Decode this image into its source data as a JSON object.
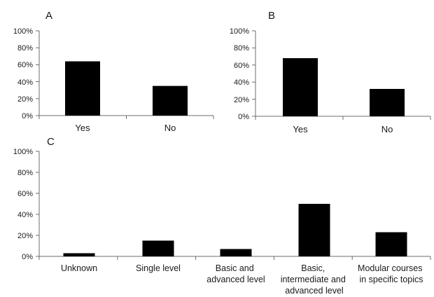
{
  "chart_data": [
    {
      "panel": "A",
      "type": "bar",
      "categories": [
        "Yes",
        "No"
      ],
      "values": [
        64,
        35
      ],
      "ylim": [
        0,
        100
      ],
      "yticks": [
        "100%",
        "80%",
        "60%",
        "40%",
        "20%",
        "0%"
      ],
      "grid": false,
      "color": "#000000"
    },
    {
      "panel": "B",
      "type": "bar",
      "categories": [
        "Yes",
        "No"
      ],
      "values": [
        68,
        32
      ],
      "ylim": [
        0,
        100
      ],
      "yticks": [
        "100%",
        "80%",
        "60%",
        "40%",
        "20%",
        "0%"
      ],
      "grid": false,
      "color": "#000000"
    },
    {
      "panel": "C",
      "type": "bar",
      "categories": [
        [
          "Unknown"
        ],
        [
          "Single level"
        ],
        [
          "Basic and",
          "advanced level"
        ],
        [
          "Basic,",
          "intermediate and",
          "advanced level"
        ],
        [
          "Modular courses",
          "in specific topics"
        ]
      ],
      "values": [
        3,
        15,
        7,
        50,
        23
      ],
      "ylim": [
        0,
        100
      ],
      "yticks": [
        "100%",
        "80%",
        "60%",
        "40%",
        "20%",
        "0%"
      ],
      "grid": false,
      "color": "#000000"
    }
  ]
}
